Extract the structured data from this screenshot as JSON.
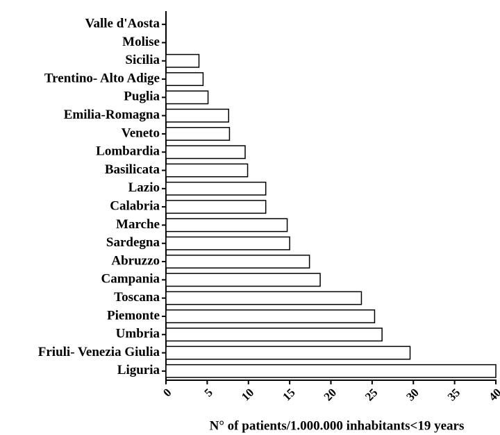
{
  "chart_data": {
    "type": "barh",
    "xlabel": "N° of patients/1.000.000 inhabitants<19 years",
    "categories": [
      "Valle d'Aosta",
      "Molise",
      "Sicilia",
      "Trentino- Alto Adige",
      "Puglia",
      "Emilia-Romagna",
      "Veneto",
      "Lombardia",
      "Basilicata",
      "Lazio",
      "Calabria",
      "Marche",
      "Sardegna",
      "Abruzzo",
      "Campania",
      "Toscana",
      "Piemonte",
      "Umbria",
      "Friuli- Venezia Giulia",
      "Liguria"
    ],
    "values": [
      0,
      0,
      4.0,
      4.5,
      5.1,
      7.6,
      7.7,
      9.6,
      9.9,
      12.1,
      12.1,
      14.7,
      15.0,
      17.4,
      18.7,
      23.7,
      25.3,
      26.2,
      29.6,
      40
    ],
    "color": "#ffffff",
    "xlim": [
      0,
      40
    ],
    "xticks": [
      0,
      5,
      10,
      15,
      20,
      25,
      30,
      35,
      40
    ]
  }
}
